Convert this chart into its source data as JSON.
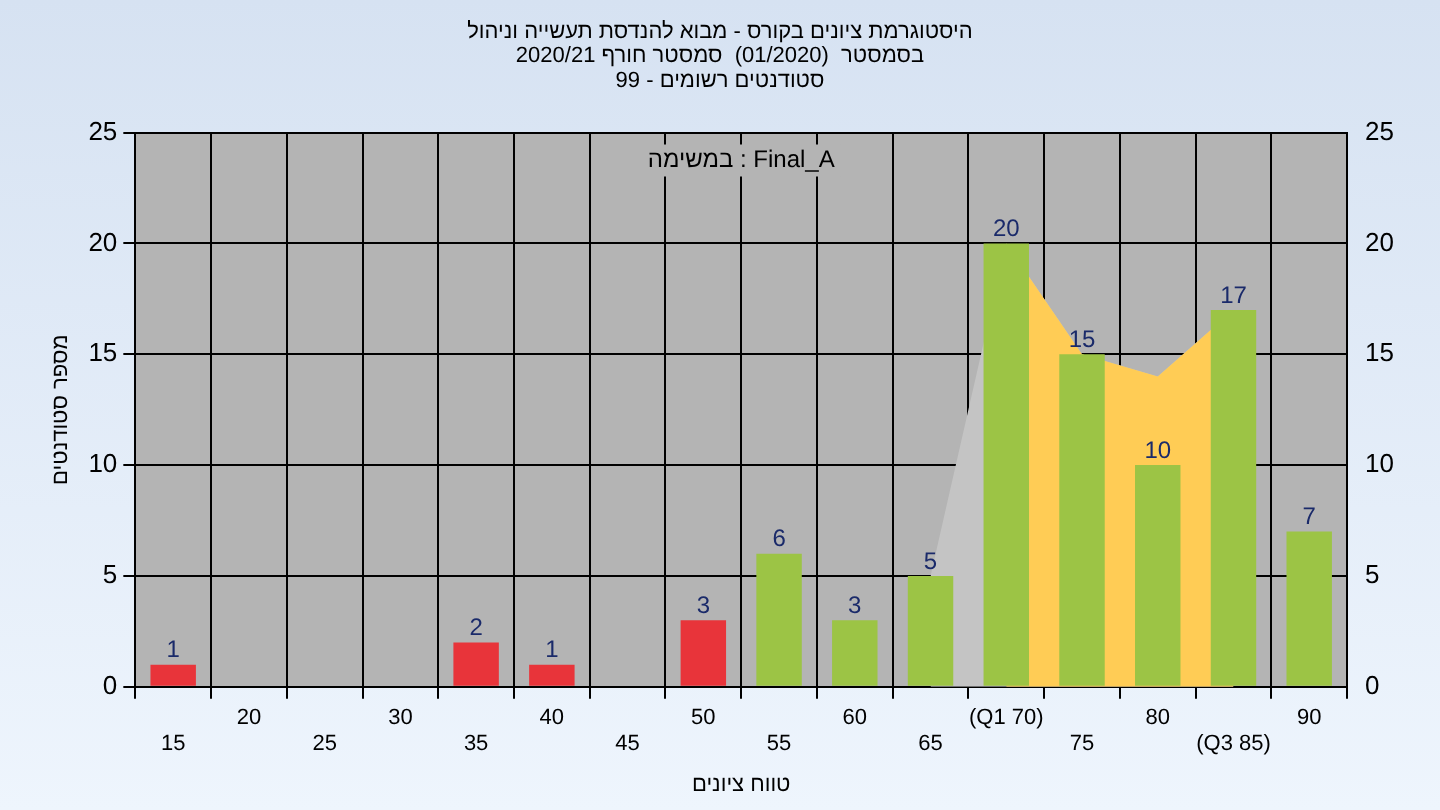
{
  "chart_data": {
    "type": "bar",
    "title": "היסטוגרמת ציונים בקורס - מבוא להנדסת תעשייה וניהול\nבסמסטר  (01/2020)  סמסטר חורף 2020/21\nסטודנטים רשומים - 99",
    "xlabel": "טווח ציונים",
    "ylabel": "מספר סטודנטים",
    "annotations": [
      "במשימה : Final_A"
    ],
    "categories": [
      "15",
      "20",
      "25",
      "30",
      "35",
      "40",
      "45",
      "50",
      "55",
      "60",
      "65",
      "(Q1 70)",
      "75",
      "80",
      "(Q3 85)",
      "90"
    ],
    "series": [
      {
        "colors": [
          "#e8343a",
          "#e8343a",
          "#e8343a",
          "#e8343a",
          "#e8343a",
          "#e8343a",
          "#e8343a",
          "#e8343a",
          "#9cc445",
          "#9cc445",
          "#9cc445",
          "#9cc445",
          "#9cc445",
          "#9cc445",
          "#9cc445",
          "#9cc445"
        ],
        "values": [
          1,
          0,
          0,
          0,
          2,
          1,
          0,
          3,
          6,
          3,
          5,
          20,
          15,
          10,
          17,
          7
        ],
        "value_labels": [
          "1",
          null,
          null,
          null,
          "2",
          "1",
          null,
          "3",
          "6",
          "3",
          "5",
          "20",
          "15",
          "10",
          "17",
          "7"
        ]
      },
      {
        "type": "area",
        "color": "#c4c4c4",
        "values": [
          null,
          null,
          null,
          null,
          null,
          null,
          null,
          null,
          null,
          null,
          5,
          20,
          15,
          14,
          17,
          null
        ]
      },
      {
        "type": "area",
        "color": "#ffcc55",
        "values": [
          null,
          null,
          null,
          null,
          null,
          null,
          null,
          null,
          null,
          null,
          null,
          20,
          15,
          14,
          17,
          null
        ]
      }
    ],
    "ylim": [
      0,
      25
    ],
    "yticks": [
      0,
      5,
      10,
      15,
      20,
      25
    ],
    "y2lim": [
      0,
      25
    ],
    "y2ticks": [
      0,
      5,
      10,
      15,
      20,
      25
    ],
    "grid": true,
    "legend": false
  }
}
